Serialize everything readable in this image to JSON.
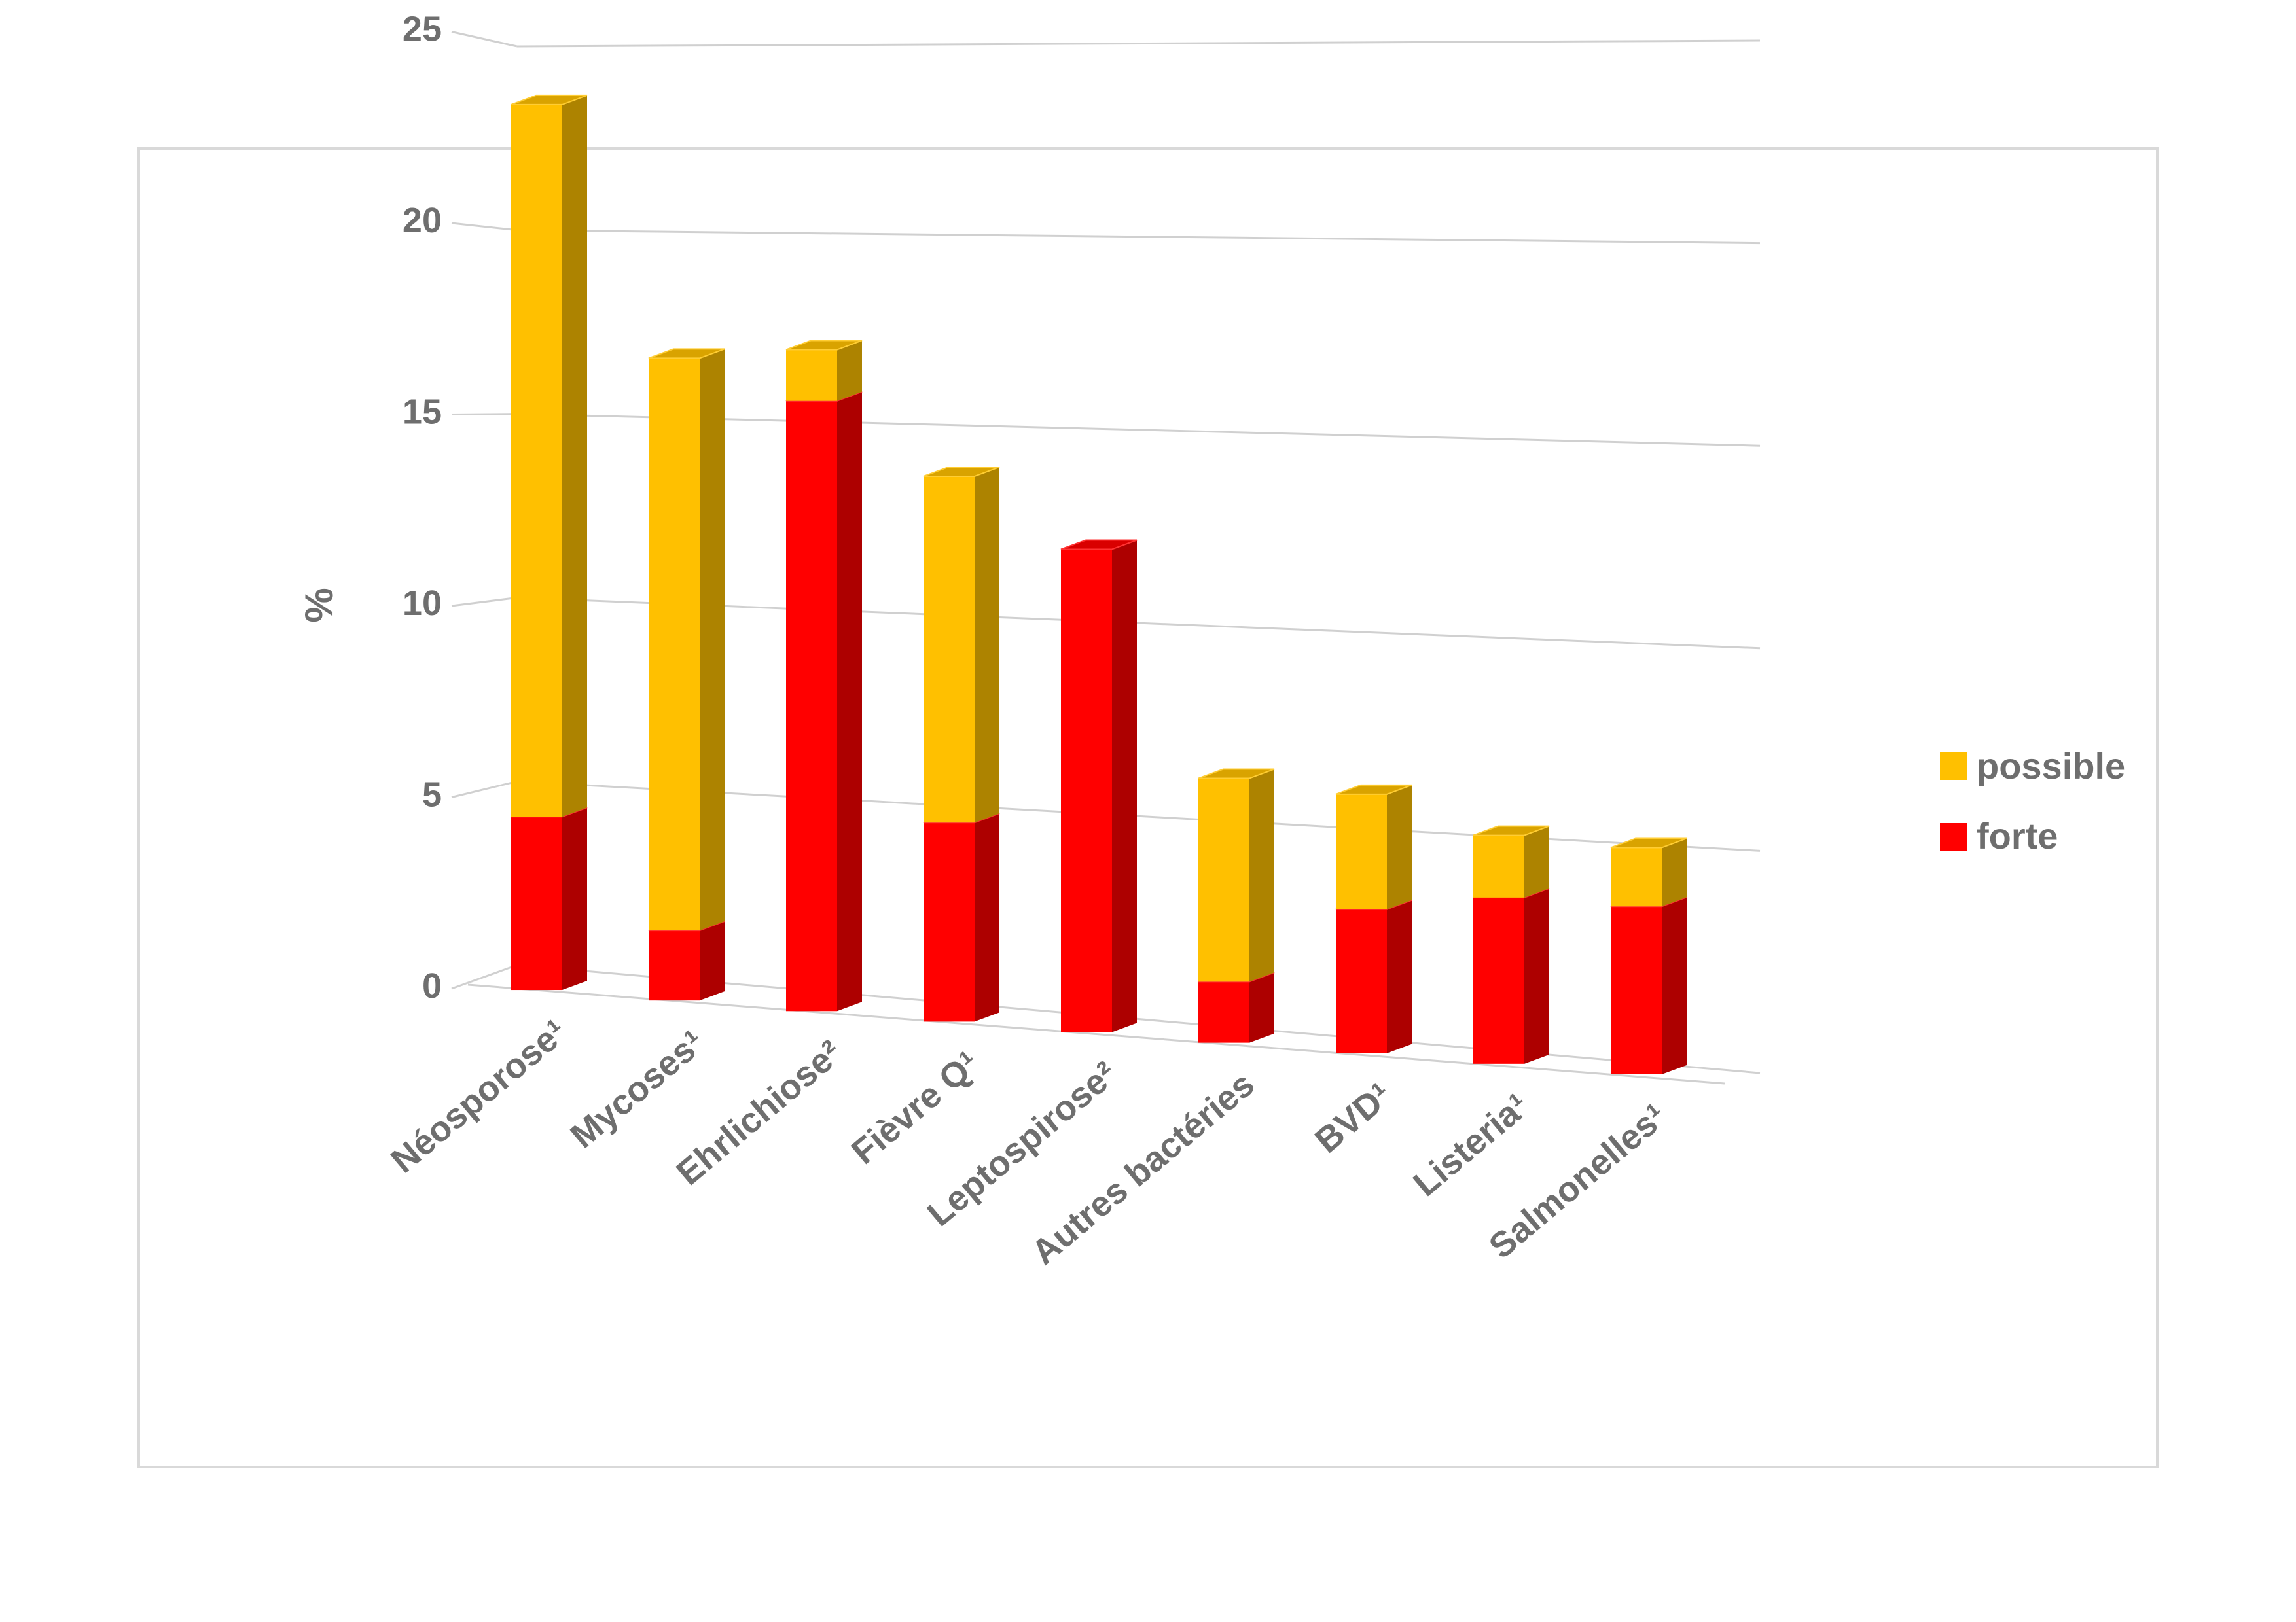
{
  "chart_data": {
    "type": "bar",
    "stacked": true,
    "three_d": true,
    "title": "",
    "xlabel": "",
    "ylabel": "%",
    "ylim": [
      0,
      25
    ],
    "yticks": [
      "0",
      "5",
      "10",
      "15",
      "20",
      "25"
    ],
    "grid": true,
    "legend_position": "right",
    "categories": [
      "Néosporose¹",
      "Mycoses¹",
      "Ehrlichiose²",
      "Fièvre Q¹",
      "Leptospirose²",
      "Autres bactéries",
      "BVD¹",
      "Listeria¹",
      "Salmonelles¹"
    ],
    "series": [
      {
        "name": "forte",
        "color": "#ff0000",
        "values": [
          4.5,
          1.8,
          15.5,
          5.0,
          12.0,
          1.5,
          3.5,
          4.0,
          4.0
        ]
      },
      {
        "name": "possible",
        "color": "#ffc000",
        "values": [
          18.5,
          14.7,
          1.3,
          8.7,
          0,
          5.0,
          2.8,
          1.5,
          1.4
        ]
      }
    ],
    "legend_order": [
      "possible",
      "forte"
    ]
  }
}
